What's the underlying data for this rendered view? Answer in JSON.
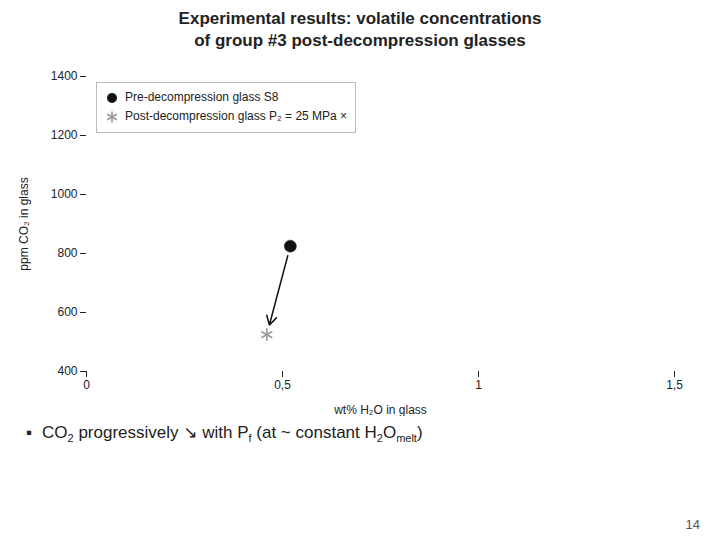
{
  "chart_data": {
    "type": "scatter",
    "title": "Experimental results: volatile concentrations",
    "subtitle": "of group #3 post-decompression glasses",
    "x_label": "wt% H₂O in glass",
    "y_label": "ppm CO₂ in glass",
    "xlim": [
      0,
      1.5
    ],
    "ylim": [
      400,
      1400
    ],
    "xticks": [
      0,
      {
        "value": 0.5,
        "label": "0,5"
      },
      1,
      {
        "value": 1.5,
        "label": "1,5"
      }
    ],
    "yticks": [
      400,
      600,
      800,
      1000,
      1200,
      1400
    ],
    "grid": false,
    "legend": "upper left",
    "series": [
      {
        "name": "Pre-decompression glass S8",
        "color": "#111111",
        "marker": "circle",
        "x": [
          0.52
        ],
        "values": [
          825
        ]
      },
      {
        "name": "Post-decompression glass P₂ = 25 MPa ×",
        "color": "#999999",
        "marker": "asterisk",
        "x": [
          0.46
        ],
        "values": [
          525
        ]
      }
    ],
    "arrows": [
      {
        "x1": 0.52,
        "y1": 825,
        "x2": 0.46,
        "y2": 525,
        "color": "#111111"
      }
    ],
    "note_bullet": "▪",
    "note": [
      {
        "text": "CO"
      },
      {
        "text": "2",
        "sub": true
      },
      {
        "text": " progressively ↘ with P"
      },
      {
        "text": "f",
        "sub": true
      },
      {
        "text": " (at ~ constant H"
      },
      {
        "text": "2",
        "sub": true
      },
      {
        "text": "O"
      },
      {
        "text": "melt",
        "sub": true
      },
      {
        "text": ")"
      }
    ],
    "page_number": "14"
  }
}
